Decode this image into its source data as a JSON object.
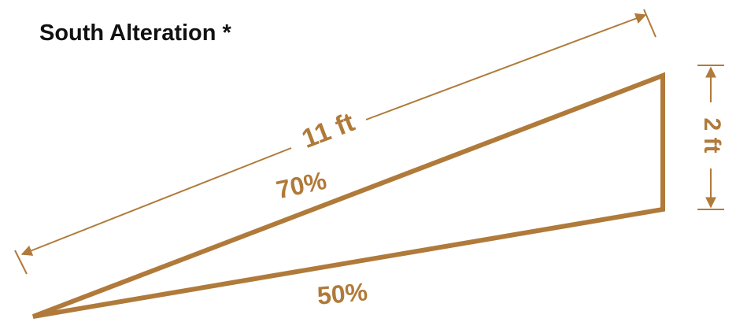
{
  "title": "South Alteration *",
  "colors": {
    "accent": "#b07a3a",
    "title": "#111111",
    "background": "#ffffff"
  },
  "labels": {
    "length": "11 ft",
    "height": "2 ft",
    "upper_slope": "70%",
    "lower_slope": "50%"
  }
}
